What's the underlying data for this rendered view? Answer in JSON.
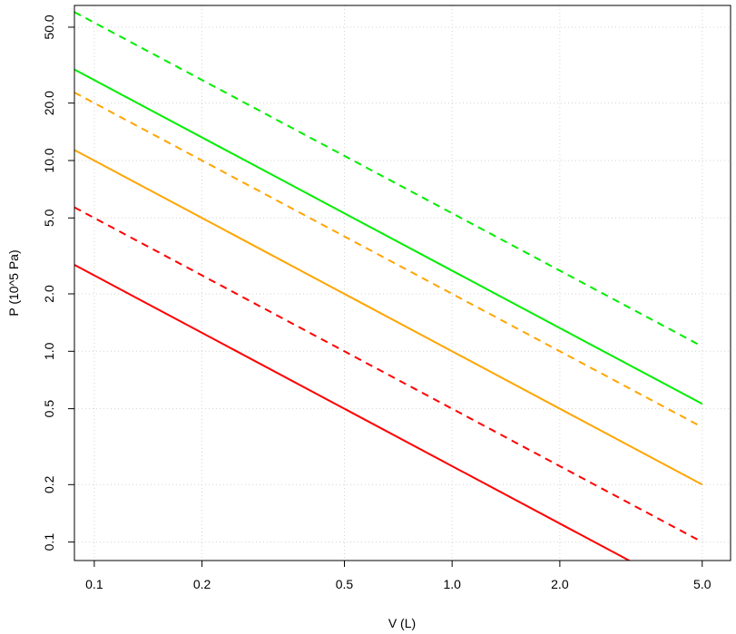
{
  "chart_data": {
    "type": "line",
    "title": "",
    "xlabel": "V (L)",
    "ylabel": "P (10^5 Pa)",
    "x_scale": "log",
    "y_scale": "log",
    "xlim": [
      0.088,
      6.0
    ],
    "ylim": [
      0.08,
      65
    ],
    "x_ticks": [
      0.1,
      0.2,
      0.5,
      1.0,
      2.0,
      5.0
    ],
    "x_tick_labels": [
      "0.1",
      "0.2",
      "0.5",
      "1.0",
      "2.0",
      "5.0"
    ],
    "y_ticks": [
      0.1,
      0.2,
      0.5,
      1.0,
      2.0,
      5.0,
      10.0,
      20.0,
      50.0
    ],
    "y_tick_labels": [
      "0.1",
      "0.2",
      "0.5",
      "1.0",
      "2.0",
      "5.0",
      "10.0",
      "20.0",
      "50.0"
    ],
    "grid": true,
    "legend": "none",
    "series": [
      {
        "color": "#ff0000",
        "dash": false,
        "x": [
          0.088,
          5.0
        ],
        "y": [
          2.84,
          0.05
        ]
      },
      {
        "color": "#ff0000",
        "dash": true,
        "x": [
          0.088,
          5.0
        ],
        "y": [
          5.68,
          0.1
        ]
      },
      {
        "color": "#ffa500",
        "dash": false,
        "x": [
          0.088,
          5.0
        ],
        "y": [
          11.36,
          0.2
        ]
      },
      {
        "color": "#ffa500",
        "dash": true,
        "x": [
          0.088,
          5.0
        ],
        "y": [
          22.73,
          0.4
        ]
      },
      {
        "color": "#00ee00",
        "dash": false,
        "x": [
          0.088,
          5.0
        ],
        "y": [
          30.0,
          0.53
        ]
      },
      {
        "color": "#00ee00",
        "dash": true,
        "x": [
          0.088,
          5.0
        ],
        "y": [
          60.0,
          1.06
        ]
      }
    ]
  }
}
